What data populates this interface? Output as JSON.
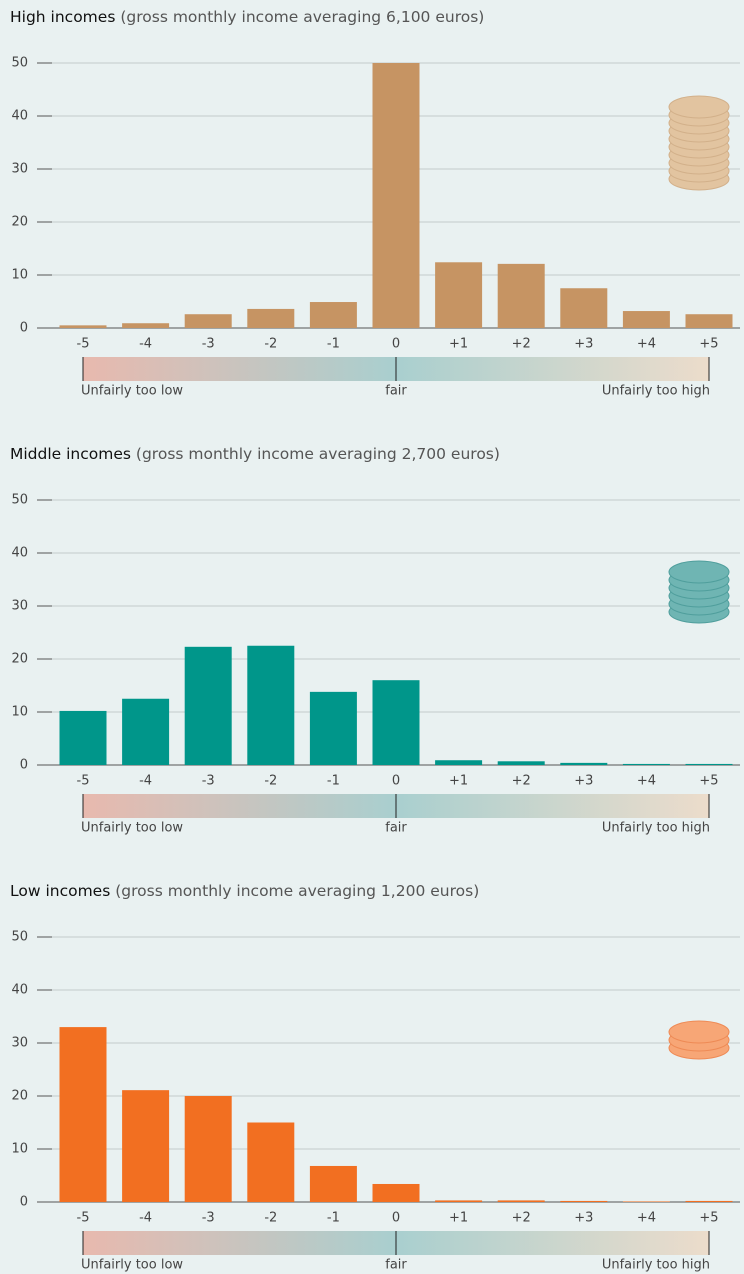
{
  "chart_data": [
    {
      "type": "bar",
      "title": "High incomes",
      "subtitle": "(gross monthly income averaging 6,100 euros)",
      "categories": [
        "-5",
        "-4",
        "-3",
        "-2",
        "-1",
        "0",
        "+1",
        "+2",
        "+3",
        "+4",
        "+5"
      ],
      "values": [
        0.5,
        0.9,
        2.6,
        3.6,
        4.9,
        50,
        12.4,
        12.1,
        7.5,
        3.2,
        2.6
      ],
      "color": "#c69463",
      "ylim": [
        0,
        50
      ],
      "yticks": [
        0,
        10,
        20,
        30,
        40,
        50
      ],
      "grid": true,
      "scale_labels": [
        "Unfairly too low",
        "fair",
        "Unfairly too high"
      ]
    },
    {
      "type": "bar",
      "title": "Middle incomes",
      "subtitle": "(gross monthly income averaging 2,700 euros)",
      "categories": [
        "-5",
        "-4",
        "-3",
        "-2",
        "-1",
        "0",
        "+1",
        "+2",
        "+3",
        "+4",
        "+5"
      ],
      "values": [
        10.2,
        12.5,
        22.3,
        22.5,
        13.8,
        16.0,
        0.9,
        0.7,
        0.4,
        0.2,
        0.2
      ],
      "color": "#00968a",
      "ylim": [
        0,
        50
      ],
      "yticks": [
        0,
        10,
        20,
        30,
        40,
        50
      ],
      "grid": true,
      "scale_labels": [
        "Unfairly too low",
        "fair",
        "Unfairly too high"
      ]
    },
    {
      "type": "bar",
      "title": "Low incomes",
      "subtitle": "(gross monthly income averaging 1,200 euros)",
      "categories": [
        "-5",
        "-4",
        "-3",
        "-2",
        "-1",
        "0",
        "+1",
        "+2",
        "+3",
        "+4",
        "+5"
      ],
      "values": [
        33,
        21.1,
        20,
        15,
        6.8,
        3.4,
        0.3,
        0.3,
        0.2,
        0.1,
        0.2
      ],
      "color": "#f26f21",
      "ylim": [
        0,
        50
      ],
      "yticks": [
        0,
        10,
        20,
        30,
        40,
        50
      ],
      "grid": true,
      "scale_labels": [
        "Unfairly too low",
        "fair",
        "Unfairly too high"
      ]
    }
  ]
}
